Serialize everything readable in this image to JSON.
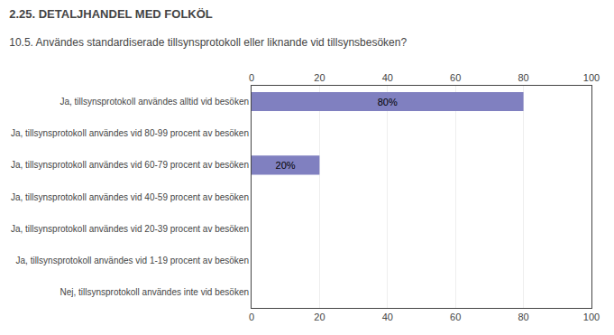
{
  "chart_data": {
    "type": "bar",
    "orientation": "horizontal",
    "title": "2.25. DETALJHANDEL MED FOLKÖL",
    "subtitle": "10.5. Användes standardiserade tillsynsprotokoll eller liknande vid tillsynsbesöken?",
    "categories": [
      "Ja, tillsynsprotokoll användes alltid vid besöken",
      "Ja, tillsynsprotokoll användes vid 80-99 procent av besöken",
      "Ja, tillsynsprotokoll användes vid 60-79 procent av besöken",
      "Ja, tillsynsprotokoll användes vid 40-59 procent av besöken",
      "Ja, tillsynsprotokoll användes vid 20-39 procent av besöken",
      "Ja, tillsynsprotokoll användes vid 1-19 procent av besöken",
      "Nej, tillsynsprotokoll användes inte vid besöken"
    ],
    "values": [
      80,
      0,
      20,
      0,
      0,
      0,
      0
    ],
    "value_labels": [
      "80%",
      null,
      "20%",
      null,
      null,
      null,
      null
    ],
    "color": "#8080c0",
    "xlim": [
      0,
      100
    ],
    "xticks": [
      0,
      20,
      40,
      60,
      80,
      100
    ],
    "grid": true
  }
}
